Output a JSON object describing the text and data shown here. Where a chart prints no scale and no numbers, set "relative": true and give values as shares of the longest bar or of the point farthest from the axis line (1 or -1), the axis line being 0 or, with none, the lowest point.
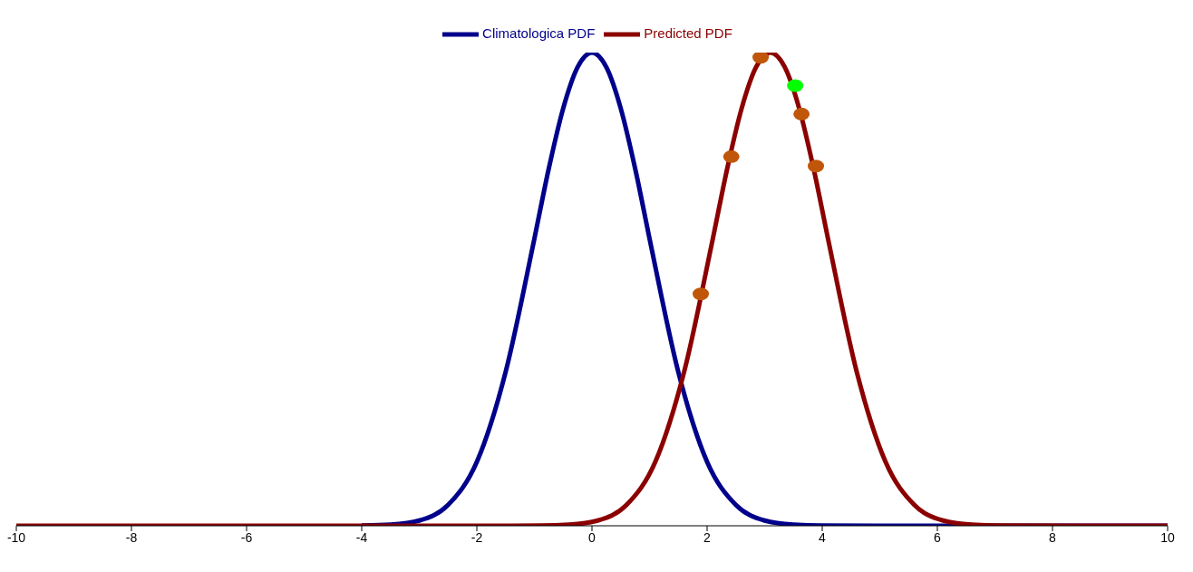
{
  "chart_data": {
    "type": "line",
    "relative": true,
    "xlim": [
      -10,
      10
    ],
    "xticks": [
      -10,
      -8,
      -6,
      -4,
      -2,
      0,
      2,
      4,
      6,
      8,
      10
    ],
    "legend": "top",
    "grid": false,
    "series": [
      {
        "name": "Climatologica PDF",
        "marker": "none",
        "color": "#00008b",
        "x": [
          -4,
          -3.5,
          -3,
          -2.5,
          -2,
          -1.5,
          -1,
          -0.75,
          -0.5,
          -0.25,
          0,
          0.25,
          0.5,
          0.75,
          1,
          1.5,
          2,
          2.5,
          3,
          3.5,
          4,
          6,
          10
        ],
        "values": [
          0.0003,
          0.0022,
          0.011,
          0.044,
          0.135,
          0.325,
          0.607,
          0.755,
          0.882,
          0.969,
          1,
          0.969,
          0.882,
          0.755,
          0.607,
          0.325,
          0.135,
          0.044,
          0.011,
          0.0022,
          0.0003,
          0,
          0
        ]
      },
      {
        "name": "Predicted PDF",
        "marker": "none",
        "color": "#8b0000",
        "x": [
          -10,
          -2,
          -0.9,
          -0.4,
          0.1,
          0.6,
          1.1,
          1.6,
          2.1,
          2.35,
          2.6,
          2.85,
          3.1,
          3.35,
          3.6,
          3.85,
          4.1,
          4.6,
          5.1,
          5.6,
          6.1,
          6.6,
          7.1,
          10
        ],
        "values": [
          0,
          0,
          0.0003,
          0.0022,
          0.011,
          0.044,
          0.135,
          0.325,
          0.607,
          0.755,
          0.882,
          0.969,
          1,
          0.969,
          0.882,
          0.755,
          0.607,
          0.325,
          0.135,
          0.044,
          0.011,
          0.0022,
          0.0003,
          0
        ]
      },
      {
        "type": "scatter",
        "marker": "circle",
        "color": "#c0560a",
        "x": [
          1.89,
          2.42,
          2.93,
          3.64,
          3.89
        ],
        "values": [
          0.49,
          0.78,
          0.99,
          0.87,
          0.76
        ]
      },
      {
        "type": "scatter",
        "marker": "circle",
        "color": "#00ff00",
        "x": [
          3.53
        ],
        "values": [
          0.93
        ]
      }
    ]
  }
}
